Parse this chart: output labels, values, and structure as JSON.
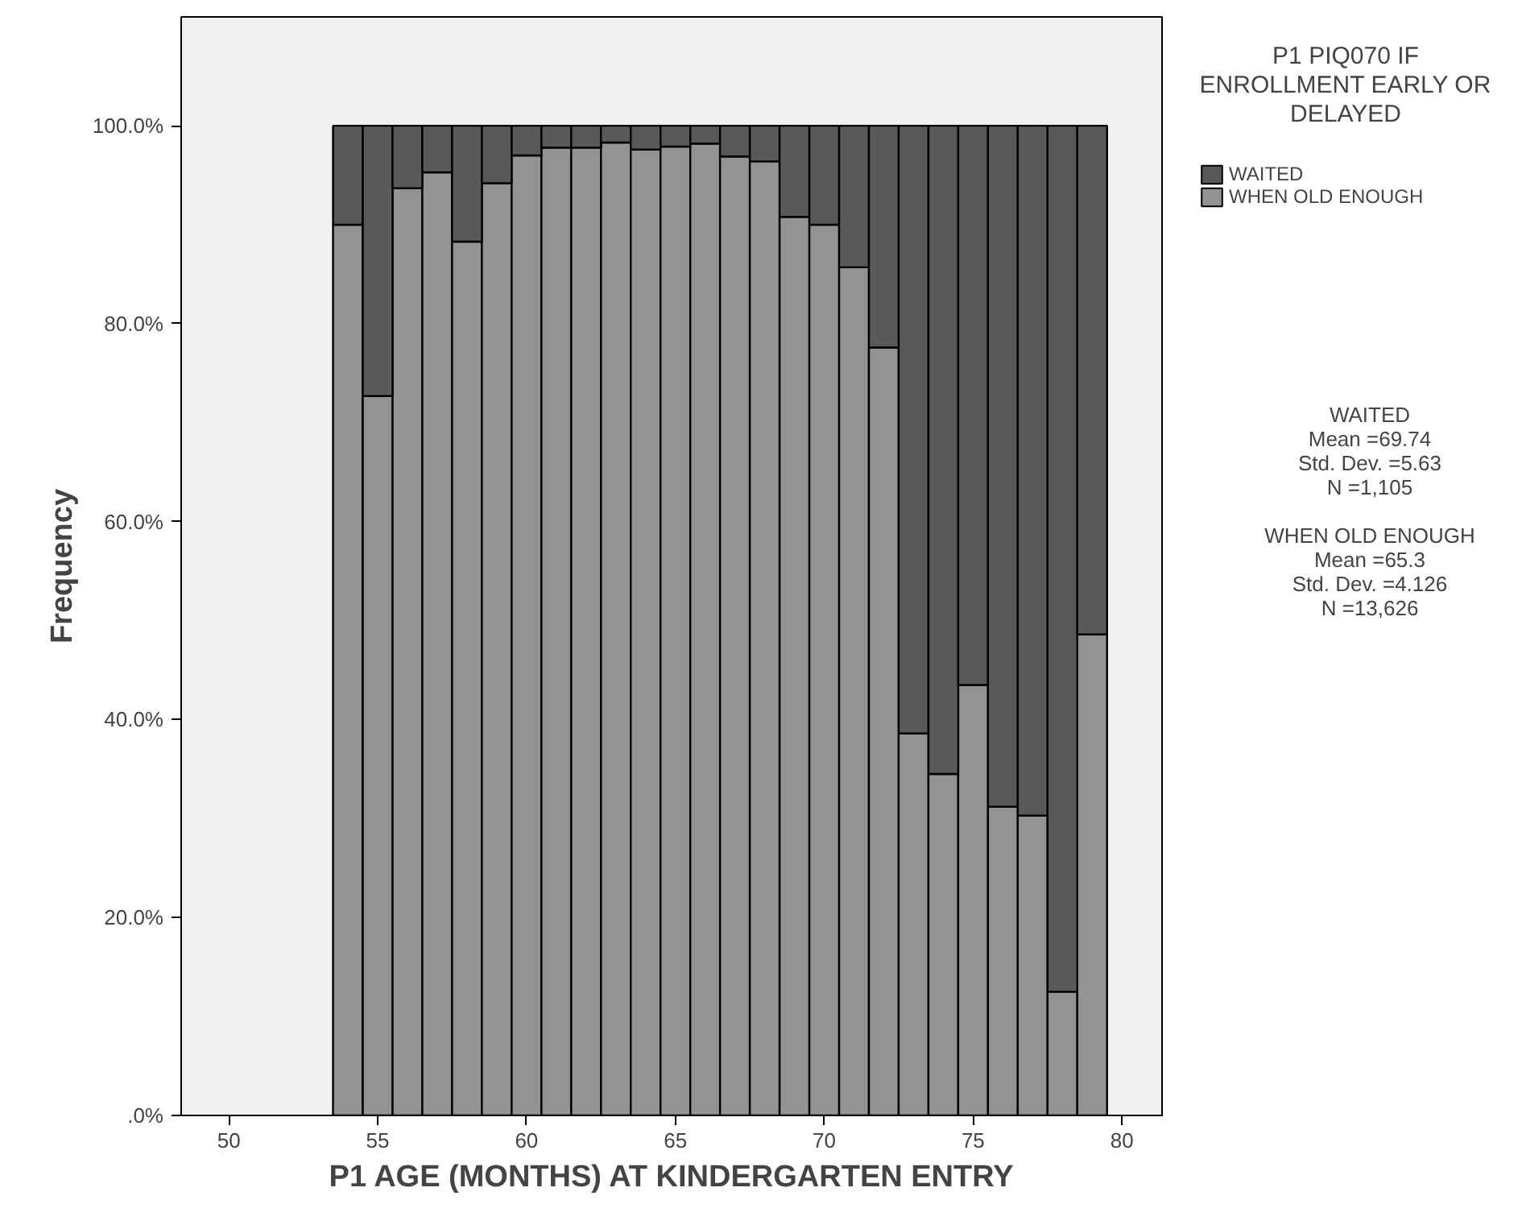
{
  "chart_data": {
    "type": "bar",
    "stacked": true,
    "xlabel": "P1 AGE (MONTHS) AT KINDERGARTEN ENTRY",
    "ylabel": "Frequency",
    "legend_title": "P1 PIQ070 IF ENROLLMENT EARLY OR DELAYED",
    "legend": "right",
    "grid": false,
    "x": [
      54,
      55,
      56,
      57,
      58,
      59,
      60,
      61,
      62,
      63,
      64,
      65,
      66,
      67,
      68,
      69,
      70,
      71,
      72,
      73,
      74,
      75,
      76,
      77,
      78,
      79
    ],
    "series": [
      {
        "name": "WHEN OLD ENOUGH",
        "color": "#939393",
        "values": [
          90.0,
          72.7,
          93.7,
          95.3,
          88.3,
          94.2,
          97.0,
          97.8,
          97.8,
          98.3,
          97.6,
          97.9,
          98.2,
          96.9,
          96.4,
          90.8,
          90.0,
          85.7,
          77.6,
          38.6,
          34.5,
          43.5,
          31.2,
          30.3,
          12.5,
          48.6
        ]
      },
      {
        "name": "WAITED",
        "color": "#595959",
        "values": [
          10.0,
          27.3,
          6.3,
          4.7,
          11.7,
          5.8,
          3.0,
          2.2,
          2.2,
          1.7,
          2.4,
          2.1,
          1.8,
          3.1,
          3.6,
          9.2,
          10.0,
          14.3,
          22.4,
          61.4,
          65.5,
          56.5,
          68.8,
          69.7,
          87.5,
          51.4
        ]
      }
    ],
    "xlim": [
      48.4,
      81.4
    ],
    "xticks": [
      50,
      55,
      60,
      65,
      70,
      75,
      80
    ],
    "ylim": [
      0,
      111
    ],
    "yticks": [
      {
        "value": 0,
        "label": ".0%"
      },
      {
        "value": 20,
        "label": "20.0%"
      },
      {
        "value": 40,
        "label": "40.0%"
      },
      {
        "value": 60,
        "label": "60.0%"
      },
      {
        "value": 80,
        "label": "80.0%"
      },
      {
        "value": 100,
        "label": "100.0%"
      }
    ],
    "annotations": [
      "WAITED\nMean =69.74\nStd. Dev. =5.63\nN =1,105",
      "WHEN OLD ENOUGH\nMean =65.3\nStd. Dev. =4.126\nN =13,626"
    ]
  }
}
